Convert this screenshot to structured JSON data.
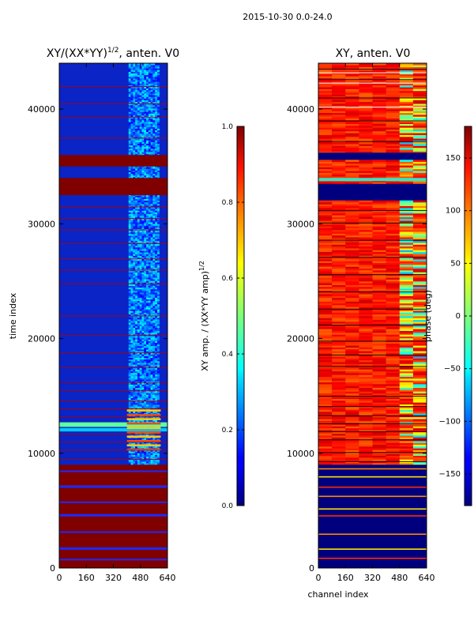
{
  "figure": {
    "suptitle": "2015-10-30 0.0-24.0"
  },
  "chart_data": [
    {
      "type": "heatmap",
      "title_main": "XY/(XX*YY)",
      "title_sup": "1/2",
      "title_rest": ", anten. V0",
      "xlabel": "",
      "ylabel": "time index",
      "xlim": [
        0,
        640
      ],
      "ylim": [
        0,
        44000
      ],
      "x_ticks": [
        0,
        160,
        320,
        480,
        640
      ],
      "y_ticks": [
        0,
        10000,
        20000,
        30000,
        40000
      ],
      "colorbar": {
        "label_main": "XY amp. / (XX*YY amp)",
        "label_sup": "1/2",
        "range": [
          0.0,
          1.0
        ],
        "ticks": [
          "0.0",
          "0.2",
          "0.4",
          "0.6",
          "0.8",
          "1.0"
        ],
        "tick_values": [
          0.0,
          0.2,
          0.4,
          0.6,
          0.8,
          1.0
        ],
        "colormap": "jet"
      },
      "saturated_bands": [
        [
          0,
          9000
        ],
        [
          32500,
          34000
        ],
        [
          35000,
          36000
        ]
      ]
    },
    {
      "type": "heatmap",
      "title": "XY, anten. V0",
      "xlabel": "channel index",
      "ylabel": "",
      "xlim": [
        0,
        640
      ],
      "ylim": [
        0,
        44000
      ],
      "x_ticks": [
        0,
        160,
        320,
        480,
        640
      ],
      "y_ticks": [
        0,
        10000,
        20000,
        30000,
        40000
      ],
      "colorbar": {
        "label": "phase (deg)",
        "range": [
          -180,
          180
        ],
        "ticks": [
          "−150",
          "−100",
          "−50",
          "0",
          "50",
          "100",
          "150"
        ],
        "tick_values": [
          -150,
          -100,
          -50,
          0,
          50,
          100,
          150
        ],
        "colormap": "jet"
      }
    }
  ]
}
